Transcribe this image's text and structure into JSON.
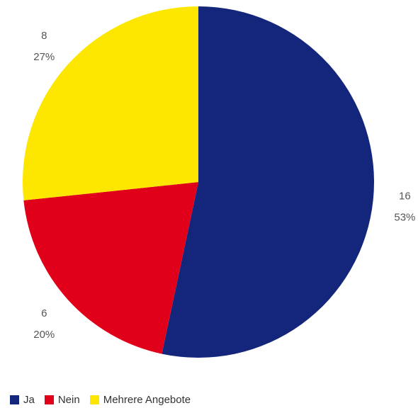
{
  "chart_data": {
    "type": "pie",
    "categories": [
      "Ja",
      "Nein",
      "Mehrere Angebote"
    ],
    "values": [
      16,
      6,
      8
    ],
    "percent_labels": [
      "53%",
      "20%",
      "27%"
    ],
    "colors": [
      "#14267c",
      "#e1001a",
      "#fde700"
    ],
    "start": "12 o'clock",
    "direction": "clockwise",
    "legend_position": "bottom-left"
  }
}
